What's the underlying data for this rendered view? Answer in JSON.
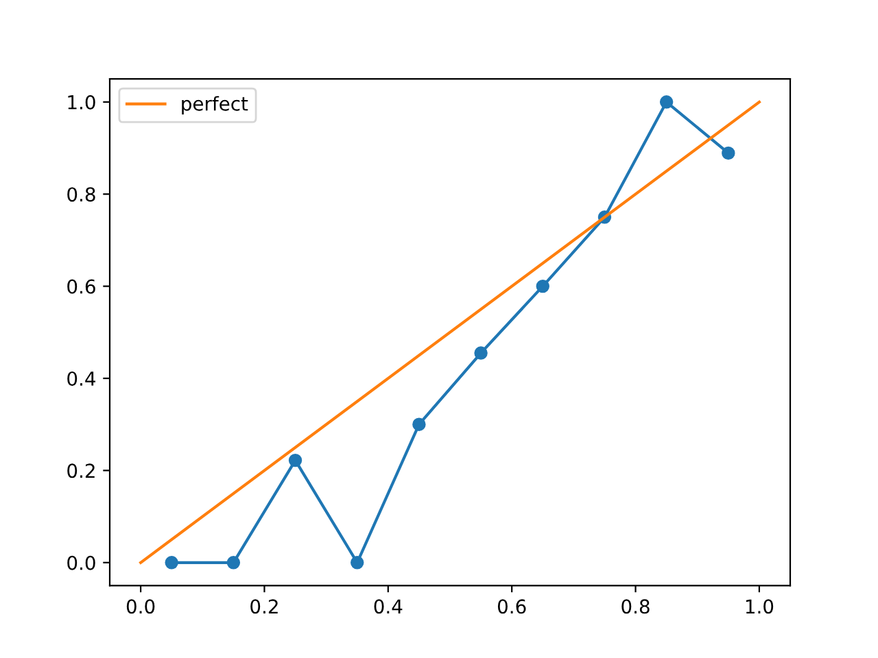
{
  "chart_data": {
    "type": "line",
    "series": [
      {
        "color": "#1f77b4",
        "marker": "circle",
        "x": [
          0.05,
          0.15,
          0.25,
          0.35,
          0.45,
          0.55,
          0.65,
          0.75,
          0.85,
          0.95
        ],
        "values": [
          0,
          0,
          0.222,
          0,
          0.3,
          0.455,
          0.6,
          0.75,
          1.0,
          0.889
        ]
      },
      {
        "name": "perfect",
        "color": "#ff7f0e",
        "marker": "none",
        "x": [
          0,
          1
        ],
        "values": [
          0,
          1
        ]
      }
    ],
    "xlim": [
      -0.05,
      1.05
    ],
    "ylim": [
      -0.05,
      1.05
    ],
    "xticks": [
      {
        "value": 0,
        "label": "0.0"
      },
      0.2,
      0.4,
      0.6,
      0.8,
      {
        "value": 1,
        "label": "1.0"
      }
    ],
    "yticks": [
      {
        "value": 0,
        "label": "0.0"
      },
      0.2,
      0.4,
      0.6,
      0.8,
      {
        "value": 1,
        "label": "1.0"
      }
    ],
    "grid": false,
    "legend": "top left",
    "line_style": "solid"
  }
}
